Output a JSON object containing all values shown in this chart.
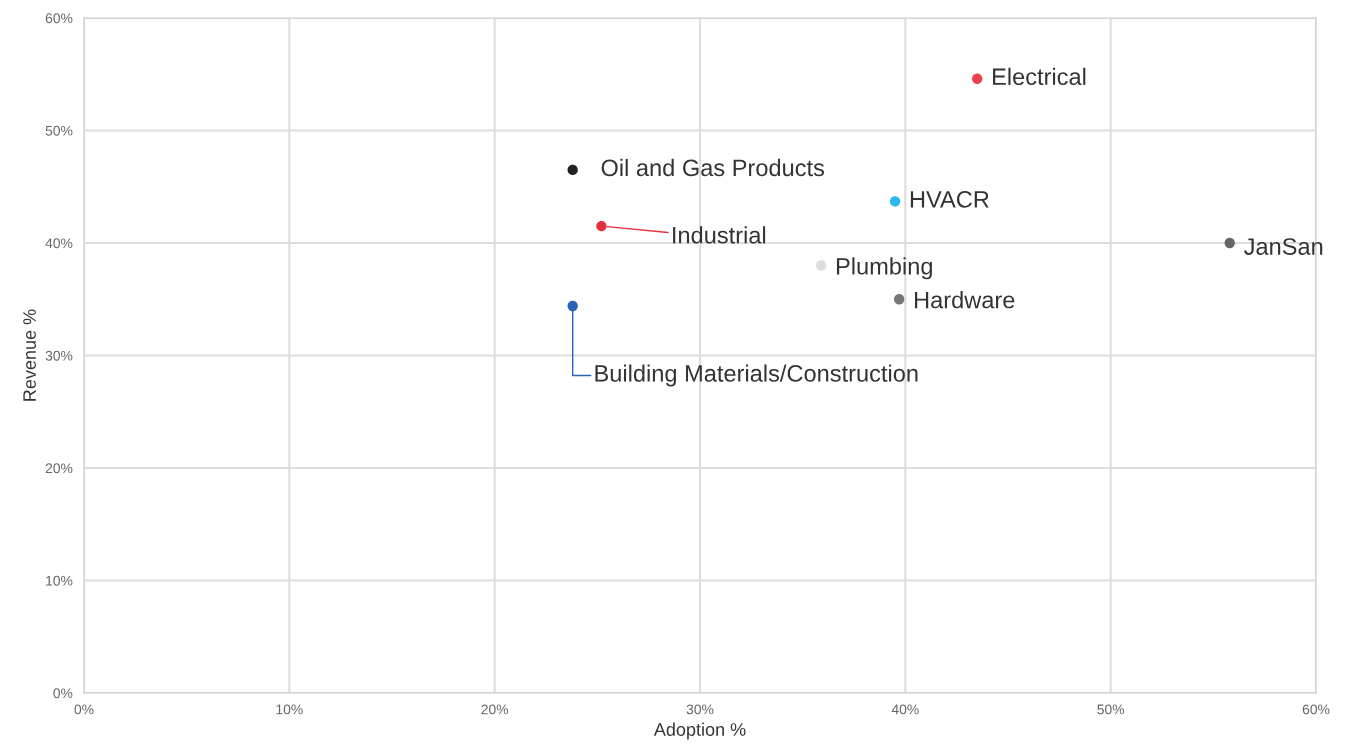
{
  "chart_data": {
    "type": "scatter",
    "xlabel": "Adoption %",
    "ylabel": "Revenue %",
    "xlim": [
      0,
      60
    ],
    "ylim": [
      0,
      60
    ],
    "xticks": [
      {
        "value": 0,
        "label": "0%"
      },
      {
        "value": 10,
        "label": "10%"
      },
      {
        "value": 20,
        "label": "20%"
      },
      {
        "value": 30,
        "label": "30%"
      },
      {
        "value": 40,
        "label": "40%"
      },
      {
        "value": 50,
        "label": "50%"
      },
      {
        "value": 60,
        "label": "60%"
      }
    ],
    "yticks": [
      {
        "value": 0,
        "label": "0%"
      },
      {
        "value": 10,
        "label": "10%"
      },
      {
        "value": 20,
        "label": "20%"
      },
      {
        "value": 30,
        "label": "30%"
      },
      {
        "value": 40,
        "label": "40%"
      },
      {
        "value": 50,
        "label": "50%"
      },
      {
        "value": 60,
        "label": "60%"
      }
    ],
    "grid": true,
    "marker": "circle",
    "series": [
      {
        "name": "Electrical",
        "color": "#e8424a",
        "x": [
          43.5
        ],
        "values": [
          54.6
        ]
      },
      {
        "name": "Oil and Gas Products",
        "color": "#222222",
        "x": [
          23.8
        ],
        "values": [
          46.5
        ]
      },
      {
        "name": "HVACR",
        "color": "#29b8f0",
        "x": [
          39.5
        ],
        "values": [
          43.7
        ]
      },
      {
        "name": "Industrial",
        "color": "#e0323c",
        "x": [
          25.2
        ],
        "values": [
          41.5
        ]
      },
      {
        "name": "JanSan",
        "color": "#666666",
        "x": [
          55.8
        ],
        "values": [
          40.0
        ]
      },
      {
        "name": "Plumbing",
        "color": "#dddddd",
        "x": [
          35.9
        ],
        "values": [
          38.0
        ]
      },
      {
        "name": "Hardware",
        "color": "#777777",
        "x": [
          39.7
        ],
        "values": [
          35.0
        ]
      },
      {
        "name": "Building Materials/Construction",
        "color": "#2a62b8",
        "x": [
          23.8
        ],
        "values": [
          34.4
        ]
      }
    ]
  }
}
